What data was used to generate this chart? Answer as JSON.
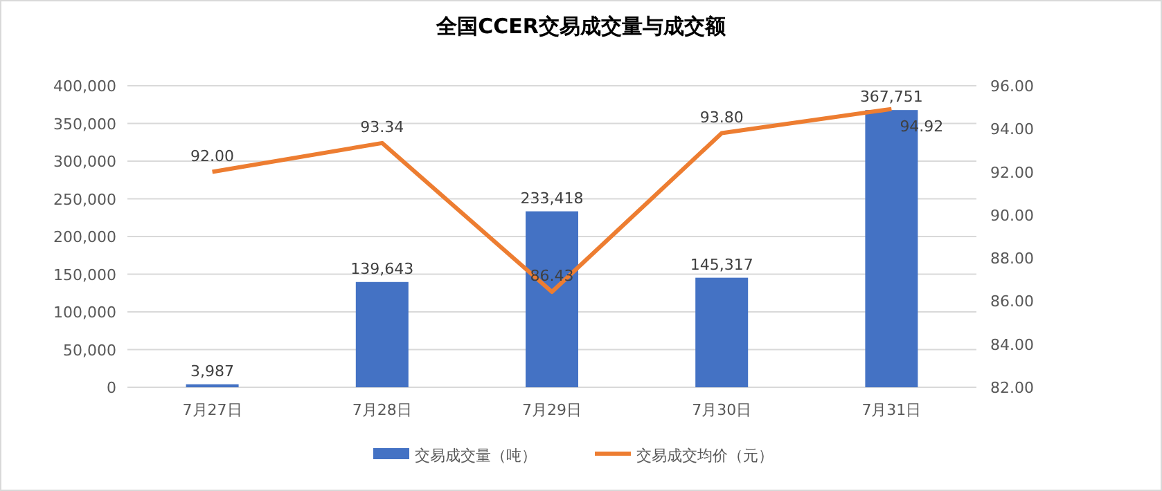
{
  "chart_data": {
    "type": "bar",
    "title": "全国CCER交易成交量与成交额",
    "categories": [
      "7月27日",
      "7月28日",
      "7月29日",
      "7月30日",
      "7月31日"
    ],
    "series": [
      {
        "name": "交易成交量（吨）",
        "color": "#4472c4",
        "values": [
          3987,
          139643,
          233418,
          145317,
          367751
        ],
        "value_labels": [
          "3,987",
          "139,643",
          "233,418",
          "145,317",
          "367,751"
        ]
      },
      {
        "name": "交易成交均价（元）",
        "type": "line",
        "axis": "y2",
        "color": "#ed7d31",
        "marker": "none",
        "values": [
          92.0,
          93.34,
          86.43,
          93.8,
          94.92
        ],
        "value_labels": [
          "92.00",
          "93.34",
          "86.43",
          "93.80",
          "94.92"
        ]
      }
    ],
    "ylim": [
      0,
      400000
    ],
    "yticks": [
      {
        "value": 0,
        "label": "0"
      },
      {
        "value": 50000,
        "label": "50,000"
      },
      {
        "value": 100000,
        "label": "100,000"
      },
      {
        "value": 150000,
        "label": "150,000"
      },
      {
        "value": 200000,
        "label": "200,000"
      },
      {
        "value": 250000,
        "label": "250,000"
      },
      {
        "value": 300000,
        "label": "300,000"
      },
      {
        "value": 350000,
        "label": "350,000"
      },
      {
        "value": 400000,
        "label": "400,000"
      }
    ],
    "y2lim": [
      82,
      96
    ],
    "y2ticks": [
      {
        "value": 82,
        "label": "82.00"
      },
      {
        "value": 84,
        "label": "84.00"
      },
      {
        "value": 86,
        "label": "86.00"
      },
      {
        "value": 88,
        "label": "88.00"
      },
      {
        "value": 90,
        "label": "90.00"
      },
      {
        "value": 92,
        "label": "92.00"
      },
      {
        "value": 94,
        "label": "94.00"
      },
      {
        "value": 96,
        "label": "96.00"
      }
    ],
    "grid": "y",
    "legend": "bottom"
  }
}
